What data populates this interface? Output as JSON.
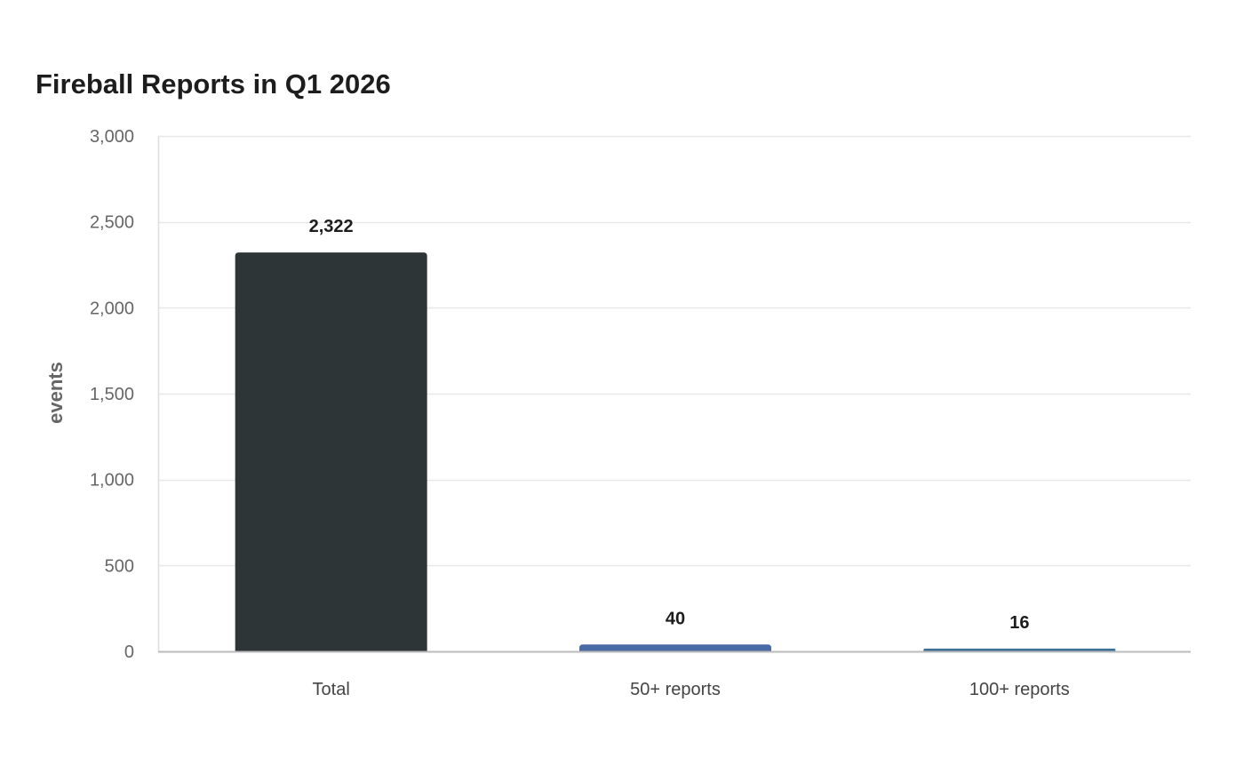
{
  "chart_data": {
    "type": "bar",
    "title": "Fireball Reports in Q1 2026",
    "xlabel": "",
    "ylabel": "events",
    "categories": [
      "Total",
      "50+ reports",
      "100+ reports"
    ],
    "values": [
      2322,
      40,
      16
    ],
    "value_labels": [
      "2,322",
      "40",
      "16"
    ],
    "bar_colors": [
      "#2e3537",
      "#4a6aa3",
      "#3d6e95"
    ],
    "ylim": [
      0,
      3000
    ],
    "yticks": [
      0,
      500,
      1000,
      1500,
      2000,
      2500,
      3000
    ],
    "ytick_labels": [
      "0",
      "500",
      "1,000",
      "1,500",
      "2,000",
      "2,500",
      "3,000"
    ],
    "grid": true,
    "legend": "none"
  }
}
